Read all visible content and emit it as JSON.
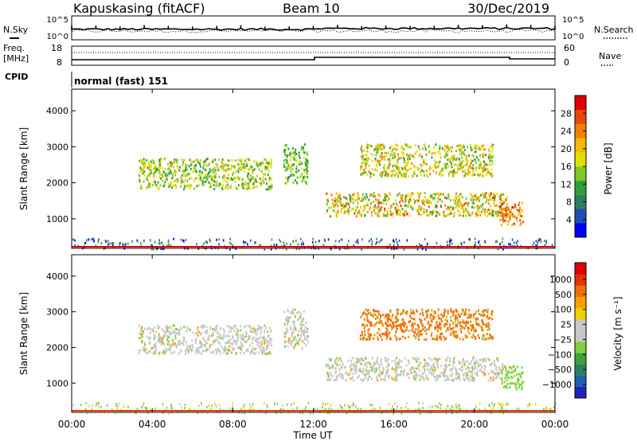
{
  "header": {
    "station": "Kapuskasing (fitACF)",
    "beam": "Beam 10",
    "date": "30/Dec/2019"
  },
  "top_panels": {
    "nsky_label": "N.Sky",
    "nsky_ticks": [
      "10^5",
      "10^0"
    ],
    "nsearch_ticks": [
      "10^5",
      "10^0"
    ],
    "nsearch_label": "N.Search",
    "freq_label_1": "Freq.",
    "freq_label_2": "[MHz]",
    "freq_ticks": [
      "18",
      "8"
    ],
    "nave_ticks": [
      "60",
      "0"
    ],
    "nave_label": "Nave",
    "cpid_label": "CPID",
    "cpid_value": "normal (fast) 151"
  },
  "chart_data": [
    {
      "type": "heatmap",
      "name": "power",
      "ylabel": "Slant Range [km]",
      "yticks": [
        "1000",
        "2000",
        "3000",
        "4000"
      ],
      "ylim": [
        180,
        4600
      ],
      "xlim": [
        0,
        24
      ],
      "colorbar_label": "Power [dB]",
      "colorbar_ticks": [
        "4",
        "8",
        "12",
        "16",
        "20",
        "24",
        "28"
      ],
      "colors": [
        "#0000ff",
        "#1f4fb5",
        "#2f7f5f",
        "#2fa03a",
        "#7fc829",
        "#e0e000",
        "#f5b800",
        "#f08000",
        "#e84800",
        "#e00000"
      ],
      "regions": [
        {
          "t0": 3.3,
          "t1": 9.9,
          "r0": 1850,
          "r1": 2700,
          "level": [
            0.3,
            0.65
          ]
        },
        {
          "t0": 10.5,
          "t1": 11.7,
          "r0": 2000,
          "r1": 3100,
          "level": [
            0.3,
            0.55
          ]
        },
        {
          "t0": 12.6,
          "t1": 21.6,
          "r0": 1100,
          "r1": 1750,
          "level": [
            0.35,
            0.85
          ]
        },
        {
          "t0": 14.3,
          "t1": 20.9,
          "r0": 2200,
          "r1": 3100,
          "level": [
            0.35,
            0.75
          ]
        },
        {
          "t0": 21.2,
          "t1": 22.4,
          "r0": 850,
          "r1": 1500,
          "level": [
            0.6,
            0.95
          ]
        }
      ]
    },
    {
      "type": "heatmap",
      "name": "velocity",
      "xlabel": "Time UT",
      "xticks": [
        "00:00",
        "04:00",
        "08:00",
        "12:00",
        "16:00",
        "20:00",
        "00:00"
      ],
      "ylabel": "Slant Range [km]",
      "yticks": [
        "1000",
        "2000",
        "3000",
        "4000"
      ],
      "ylim": [
        180,
        4600
      ],
      "xlim": [
        0,
        24
      ],
      "colorbar_label": "Velocity [m s⁻¹]",
      "colorbar_ticks": [
        "1000",
        "500",
        "100",
        "25",
        "−25",
        "−100",
        "−500",
        "−1000"
      ],
      "colors": [
        "#2020c0",
        "#2060b0",
        "#2f7f5f",
        "#3fa03a",
        "#7fd040",
        "#c8c8c8",
        "#c8c8c8",
        "#f0d000",
        "#f5a000",
        "#f07000",
        "#e83000",
        "#e00000"
      ],
      "regions": [
        {
          "t0": 3.3,
          "t1": 9.9,
          "r0": 1850,
          "r1": 2650,
          "color": "#c8c8c8"
        },
        {
          "t0": 10.5,
          "t1": 11.7,
          "r0": 2000,
          "r1": 3100,
          "color": "#c8c8c8"
        },
        {
          "t0": 12.6,
          "t1": 21.4,
          "r0": 1100,
          "r1": 1750,
          "color": "#c8c8c8"
        },
        {
          "t0": 14.3,
          "t1": 20.9,
          "r0": 2250,
          "r1": 3100,
          "color": "#f07000"
        },
        {
          "t0": 21.3,
          "t1": 22.4,
          "r0": 850,
          "r1": 1500,
          "color": "#7fd040"
        }
      ]
    }
  ]
}
